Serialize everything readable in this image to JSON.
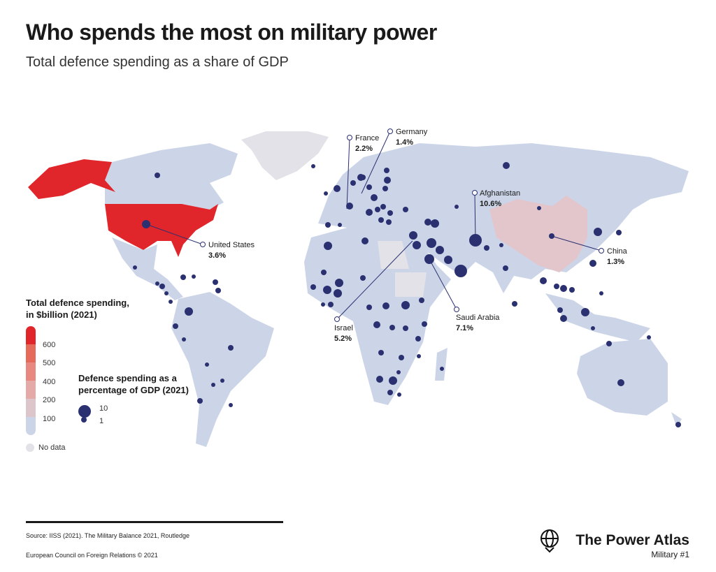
{
  "title": "Who spends the most on military power",
  "subtitle": "Total defence spending as a share of GDP",
  "colors": {
    "land": "#ccd5e8",
    "no_data": "#e2e2e8",
    "dot": "#2a3070",
    "high": "#e0262b",
    "china": "#e2c6cc"
  },
  "callouts": [
    {
      "name": "France",
      "value": "2.2%"
    },
    {
      "name": "Germany",
      "value": "1.4%"
    },
    {
      "name": "Afghanistan",
      "value": "10.6%"
    },
    {
      "name": "United States",
      "value": "3.6%"
    },
    {
      "name": "China",
      "value": "1.3%"
    },
    {
      "name": "Israel",
      "value": "5.2%"
    },
    {
      "name": "Saudi Arabia",
      "value": "7.1%"
    }
  ],
  "legend": {
    "spending_title_1": "Total defence spending,",
    "spending_title_2": "in $billion (2021)",
    "ticks": [
      "600",
      "500",
      "400",
      "200",
      "100"
    ],
    "scale_colors": [
      "#e0262b",
      "#e56a5a",
      "#e88880",
      "#e4aaa8",
      "#dcc6cc",
      "#ccd5e8"
    ],
    "gdp_title_1": "Defence spending as a",
    "gdp_title_2": "percentage of GDP (2021)",
    "size_large": "10",
    "size_small": "1",
    "no_data": "No data"
  },
  "footer": {
    "source": "Source: IISS (2021). The Military Balance 2021, Routledge",
    "copyright": "European Council on Foreign Relations © 2021",
    "brand": "The Power Atlas",
    "series": "Military #1"
  }
}
